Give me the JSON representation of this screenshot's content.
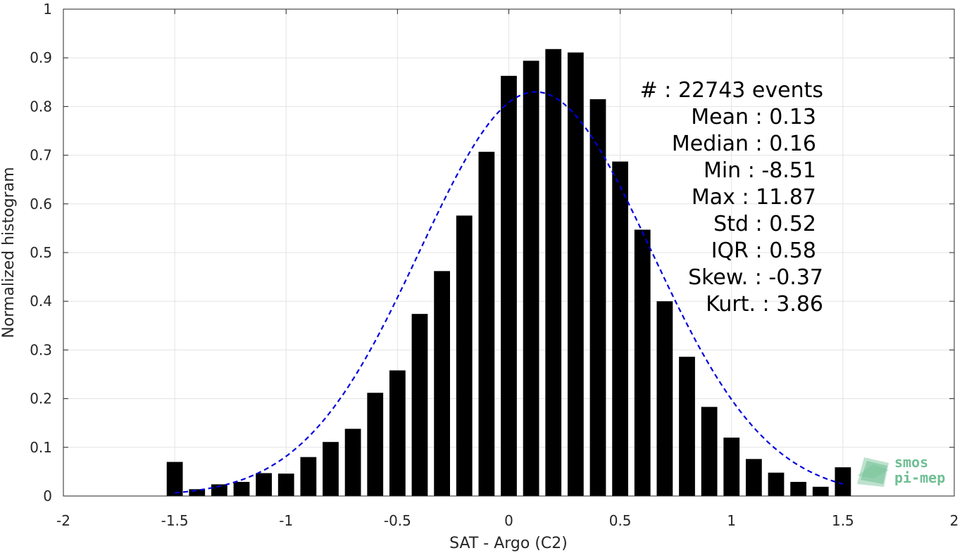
{
  "chart_data": {
    "type": "bar",
    "xlabel": "SAT - Argo (C2)",
    "ylabel": "Normalized histogram",
    "xlim": [
      -2,
      2
    ],
    "ylim": [
      0,
      1
    ],
    "grid": true,
    "x_ticks": [
      "-2",
      "-1.5",
      "-1",
      "-0.5",
      "0",
      "0.5",
      "1",
      "1.5",
      "2"
    ],
    "y_ticks": [
      "0",
      "0.1",
      "0.2",
      "0.3",
      "0.4",
      "0.5",
      "0.6",
      "0.7",
      "0.8",
      "0.9",
      "1"
    ],
    "bar_color": "#000000",
    "series": [
      {
        "x": [
          -1.5,
          -1.4,
          -1.3,
          -1.2,
          -1.1,
          -1.0,
          -0.9,
          -0.8,
          -0.7,
          -0.6,
          -0.5,
          -0.4,
          -0.3,
          -0.2,
          -0.1,
          0.0,
          0.1,
          0.2,
          0.3,
          0.4,
          0.5,
          0.6,
          0.7,
          0.8,
          0.9,
          1.0,
          1.1,
          1.2,
          1.3,
          1.4,
          1.5
        ],
        "values": [
          0.07,
          0.014,
          0.024,
          0.029,
          0.047,
          0.046,
          0.08,
          0.111,
          0.138,
          0.212,
          0.258,
          0.374,
          0.462,
          0.576,
          0.707,
          0.863,
          0.894,
          0.918,
          0.911,
          0.815,
          0.687,
          0.547,
          0.4,
          0.286,
          0.183,
          0.12,
          0.076,
          0.048,
          0.029,
          0.019,
          0.059
        ]
      }
    ],
    "fit_curve": {
      "style": "dashed",
      "color": "#0000dd",
      "mean": 0.12,
      "std": 0.52,
      "peak": 0.83,
      "x_range": [
        -1.5,
        1.5
      ]
    },
    "annotations": [
      "#  : 22743 events",
      "Mean : 0.13",
      "Median : 0.16",
      "Min : -8.51",
      "Max : 11.87",
      "Std : 0.52",
      "IQR : 0.58",
      "Skew. : -0.37",
      "Kurt. : 3.86"
    ]
  },
  "logo": {
    "line1": "smos",
    "line2": "pi-mep",
    "color": "#6fbf93"
  }
}
